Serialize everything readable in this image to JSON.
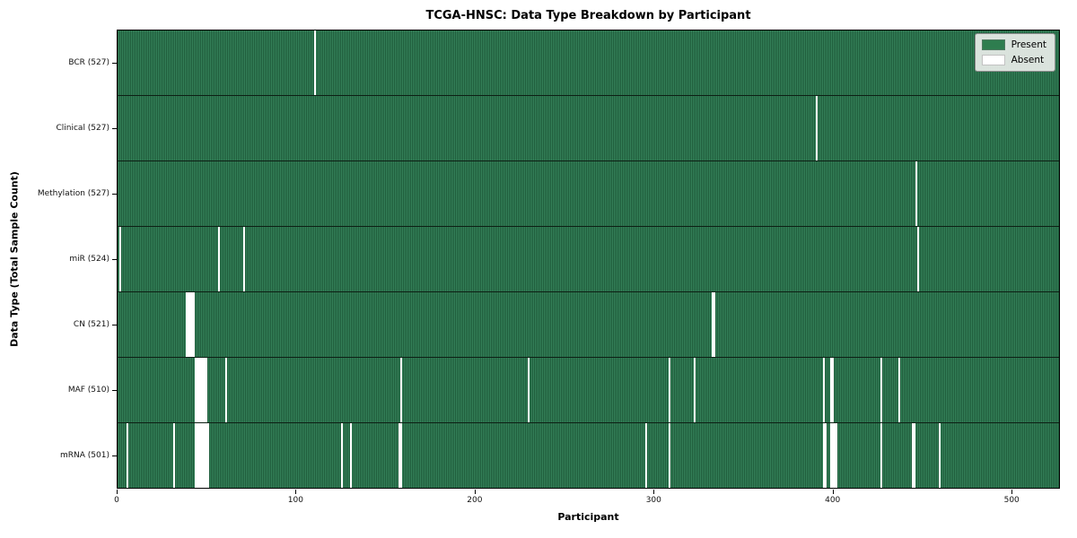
{
  "chart_data": {
    "type": "heatmap",
    "title": "TCGA-HNSC: Data Type Breakdown by Participant",
    "xlabel": "Participant",
    "ylabel": "Data Type (Total Sample Count)",
    "n_participants": 527,
    "x_ticks": [
      0,
      100,
      200,
      300,
      400,
      500
    ],
    "grid": false,
    "legend_position": "upper right",
    "colors": {
      "present": "#2e7d4f",
      "present_stripe_dark": "#1f5c3b",
      "present_stripe_light": "#35825a",
      "absent": "#ffffff",
      "row_divider": "#0d1f14",
      "plot_border": "#000000",
      "legend_bg": "#e9ede9"
    },
    "legend": [
      {
        "label": "Present",
        "color": "#2e7d4f"
      },
      {
        "label": "Absent",
        "color": "#ffffff"
      }
    ],
    "rows": [
      {
        "label": "BCR (527)",
        "total_samples": 527,
        "absent_participants": [
          110
        ]
      },
      {
        "label": "Clinical (527)",
        "total_samples": 527,
        "absent_participants": [
          390
        ]
      },
      {
        "label": "Methylation (527)",
        "total_samples": 527,
        "absent_participants": [
          446
        ]
      },
      {
        "label": "miR (524)",
        "total_samples": 524,
        "absent_participants": [
          1,
          56,
          70,
          447
        ]
      },
      {
        "label": "CN (521)",
        "total_samples": 521,
        "absent_participants": [
          38,
          39,
          40,
          41,
          42,
          332,
          333
        ]
      },
      {
        "label": "MAF (510)",
        "total_samples": 510,
        "absent_participants": [
          43,
          44,
          45,
          46,
          47,
          48,
          49,
          60,
          158,
          229,
          308,
          322,
          394,
          398,
          399,
          426,
          436
        ]
      },
      {
        "label": "mRNA (501)",
        "total_samples": 501,
        "absent_participants": [
          5,
          31,
          43,
          44,
          45,
          46,
          47,
          48,
          49,
          50,
          125,
          130,
          157,
          158,
          295,
          308,
          394,
          395,
          398,
          399,
          400,
          401,
          426,
          444,
          445,
          459
        ]
      }
    ]
  }
}
